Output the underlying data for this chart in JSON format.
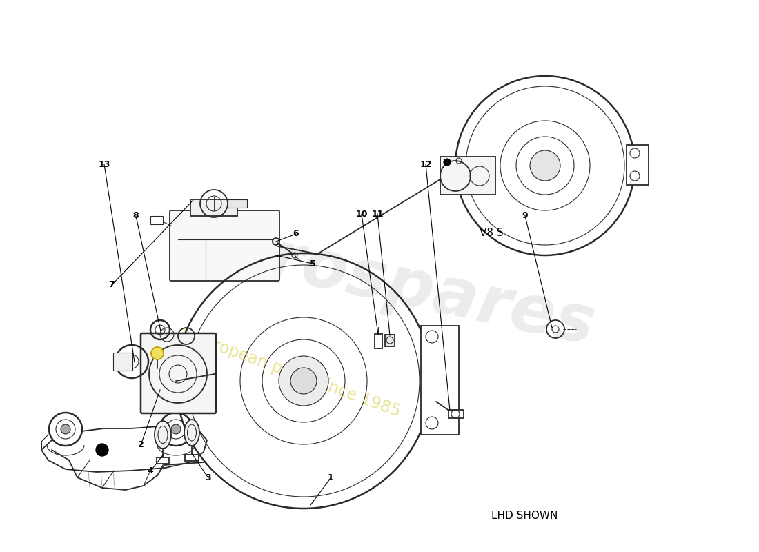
{
  "background_color": "#ffffff",
  "line_color": "#2a2a2a",
  "watermark_color": "#cccccc",
  "watermark_yellow": "#d4c830",
  "label_v8s": "V8 S",
  "label_lhd": "LHD SHOWN",
  "figsize": [
    11.0,
    8.0
  ],
  "dpi": 100,
  "parts_info": [
    [
      1,
      479,
      107,
      450,
      68
    ],
    [
      2,
      204,
      155,
      232,
      235
    ],
    [
      3,
      302,
      107,
      278,
      143
    ],
    [
      4,
      218,
      117,
      238,
      143
    ],
    [
      5,
      453,
      418,
      400,
      430
    ],
    [
      6,
      429,
      461,
      400,
      450
    ],
    [
      7,
      162,
      387,
      280,
      510
    ],
    [
      8,
      197,
      487,
      233,
      320
    ],
    [
      9,
      761,
      487,
      800,
      325
    ],
    [
      10,
      524,
      490,
      548,
      315
    ],
    [
      11,
      547,
      490,
      565,
      314
    ],
    [
      12,
      617,
      562,
      652,
      205
    ],
    [
      13,
      151,
      562,
      195,
      275
    ]
  ]
}
